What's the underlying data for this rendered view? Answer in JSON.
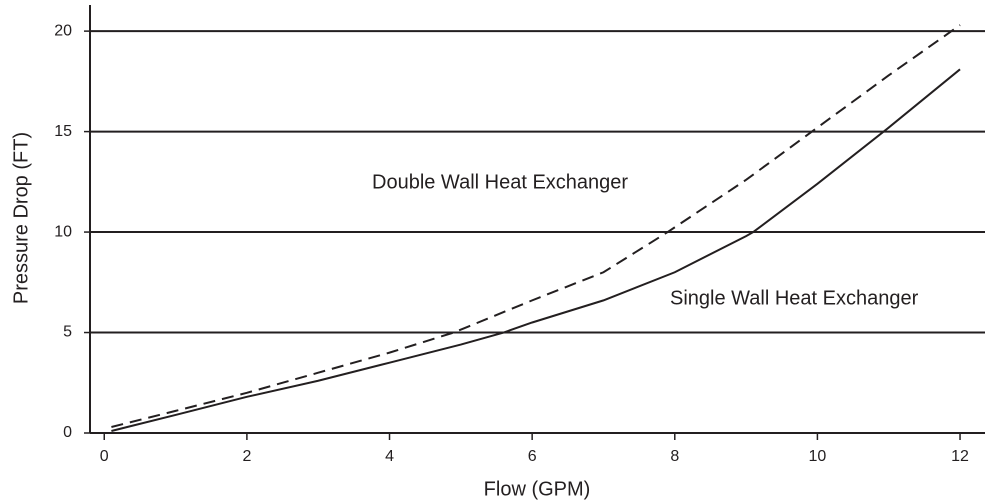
{
  "chart_data": {
    "type": "line",
    "xlabel": "Flow (GPM)",
    "ylabel": "Pressure Drop (FT)",
    "xlim": [
      -0.2,
      12.35
    ],
    "ylim": [
      0,
      21.3
    ],
    "xticks": [
      0,
      2,
      4,
      6,
      8,
      10,
      12
    ],
    "yticks": [
      0,
      5,
      10,
      15,
      20
    ],
    "grid": true,
    "annotations": [
      "Double Wall Heat Exchanger",
      "Single Wall Heat Exchanger"
    ],
    "series": [
      {
        "name": "Single Wall Heat Exchanger",
        "color": "#231f20",
        "dashed": false,
        "x": [
          0.1,
          1,
          2,
          3,
          4,
          5,
          5.6,
          6,
          7,
          8,
          9,
          9.1,
          10,
          11,
          12
        ],
        "values": [
          0.1,
          0.9,
          1.8,
          2.6,
          3.5,
          4.4,
          5,
          5.5,
          6.6,
          8,
          9.8,
          10,
          12.4,
          15.2,
          18.1
        ]
      },
      {
        "name": "Double Wall Heat Exchanger",
        "color": "#231f20",
        "dashed": true,
        "x": [
          0.1,
          1,
          2,
          3,
          4,
          4.9,
          6,
          7,
          7.9,
          9,
          10,
          11,
          12
        ],
        "values": [
          0.3,
          1.1,
          2,
          3,
          4,
          5,
          6.6,
          8,
          10,
          12.6,
          15.2,
          17.8,
          20.3
        ]
      }
    ]
  }
}
